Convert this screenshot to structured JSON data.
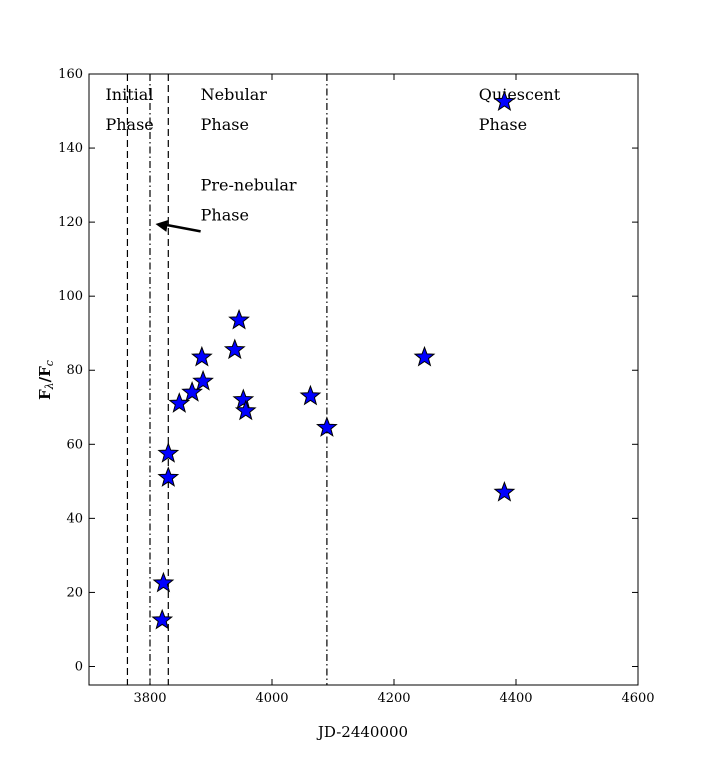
{
  "chart_data": {
    "type": "scatter",
    "title": "",
    "xlabel": "JD-2440000",
    "ylabel": "F_λ/F_c",
    "xlim": [
      3700,
      4600
    ],
    "ylim": [
      -5,
      160
    ],
    "xticks": [
      3800,
      4000,
      4200,
      4400,
      4600
    ],
    "yticks": [
      0,
      20,
      40,
      60,
      80,
      100,
      120,
      140,
      160
    ],
    "grid": false,
    "marker": "star",
    "marker_color": "#0000ff",
    "points": [
      {
        "x": 3820,
        "y": 12.5
      },
      {
        "x": 3822,
        "y": 22.5
      },
      {
        "x": 3830,
        "y": 51
      },
      {
        "x": 3830,
        "y": 57.5
      },
      {
        "x": 3848,
        "y": 71
      },
      {
        "x": 3869,
        "y": 74
      },
      {
        "x": 3885,
        "y": 83.5
      },
      {
        "x": 3887,
        "y": 77
      },
      {
        "x": 3939,
        "y": 85.5
      },
      {
        "x": 3946,
        "y": 93.5
      },
      {
        "x": 3953,
        "y": 72
      },
      {
        "x": 3957,
        "y": 69
      },
      {
        "x": 4063,
        "y": 73
      },
      {
        "x": 4090,
        "y": 64.5
      },
      {
        "x": 4250,
        "y": 83.5
      },
      {
        "x": 4381,
        "y": 152.5
      },
      {
        "x": 4381,
        "y": 47
      }
    ],
    "vertical_lines": [
      {
        "x": 3763,
        "style": "dashed"
      },
      {
        "x": 3800,
        "style": "dashdot"
      },
      {
        "x": 3830,
        "style": "dashed"
      },
      {
        "x": 4090,
        "style": "dashdot"
      }
    ],
    "annotations": [
      {
        "lines": [
          "Initial",
          "Phase"
        ],
        "x": 3727,
        "y": 153
      },
      {
        "lines": [
          "Nebular",
          "Phase"
        ],
        "x": 3883,
        "y": 153
      },
      {
        "lines": [
          "Quiescent",
          "Phase"
        ],
        "x": 4339,
        "y": 153
      },
      {
        "lines": [
          "Pre-nebular",
          "Phase"
        ],
        "x": 3883,
        "y": 128.5
      }
    ],
    "arrow": {
      "from": [
        3883,
        117.5
      ],
      "to": [
        3809,
        119.5
      ]
    }
  }
}
